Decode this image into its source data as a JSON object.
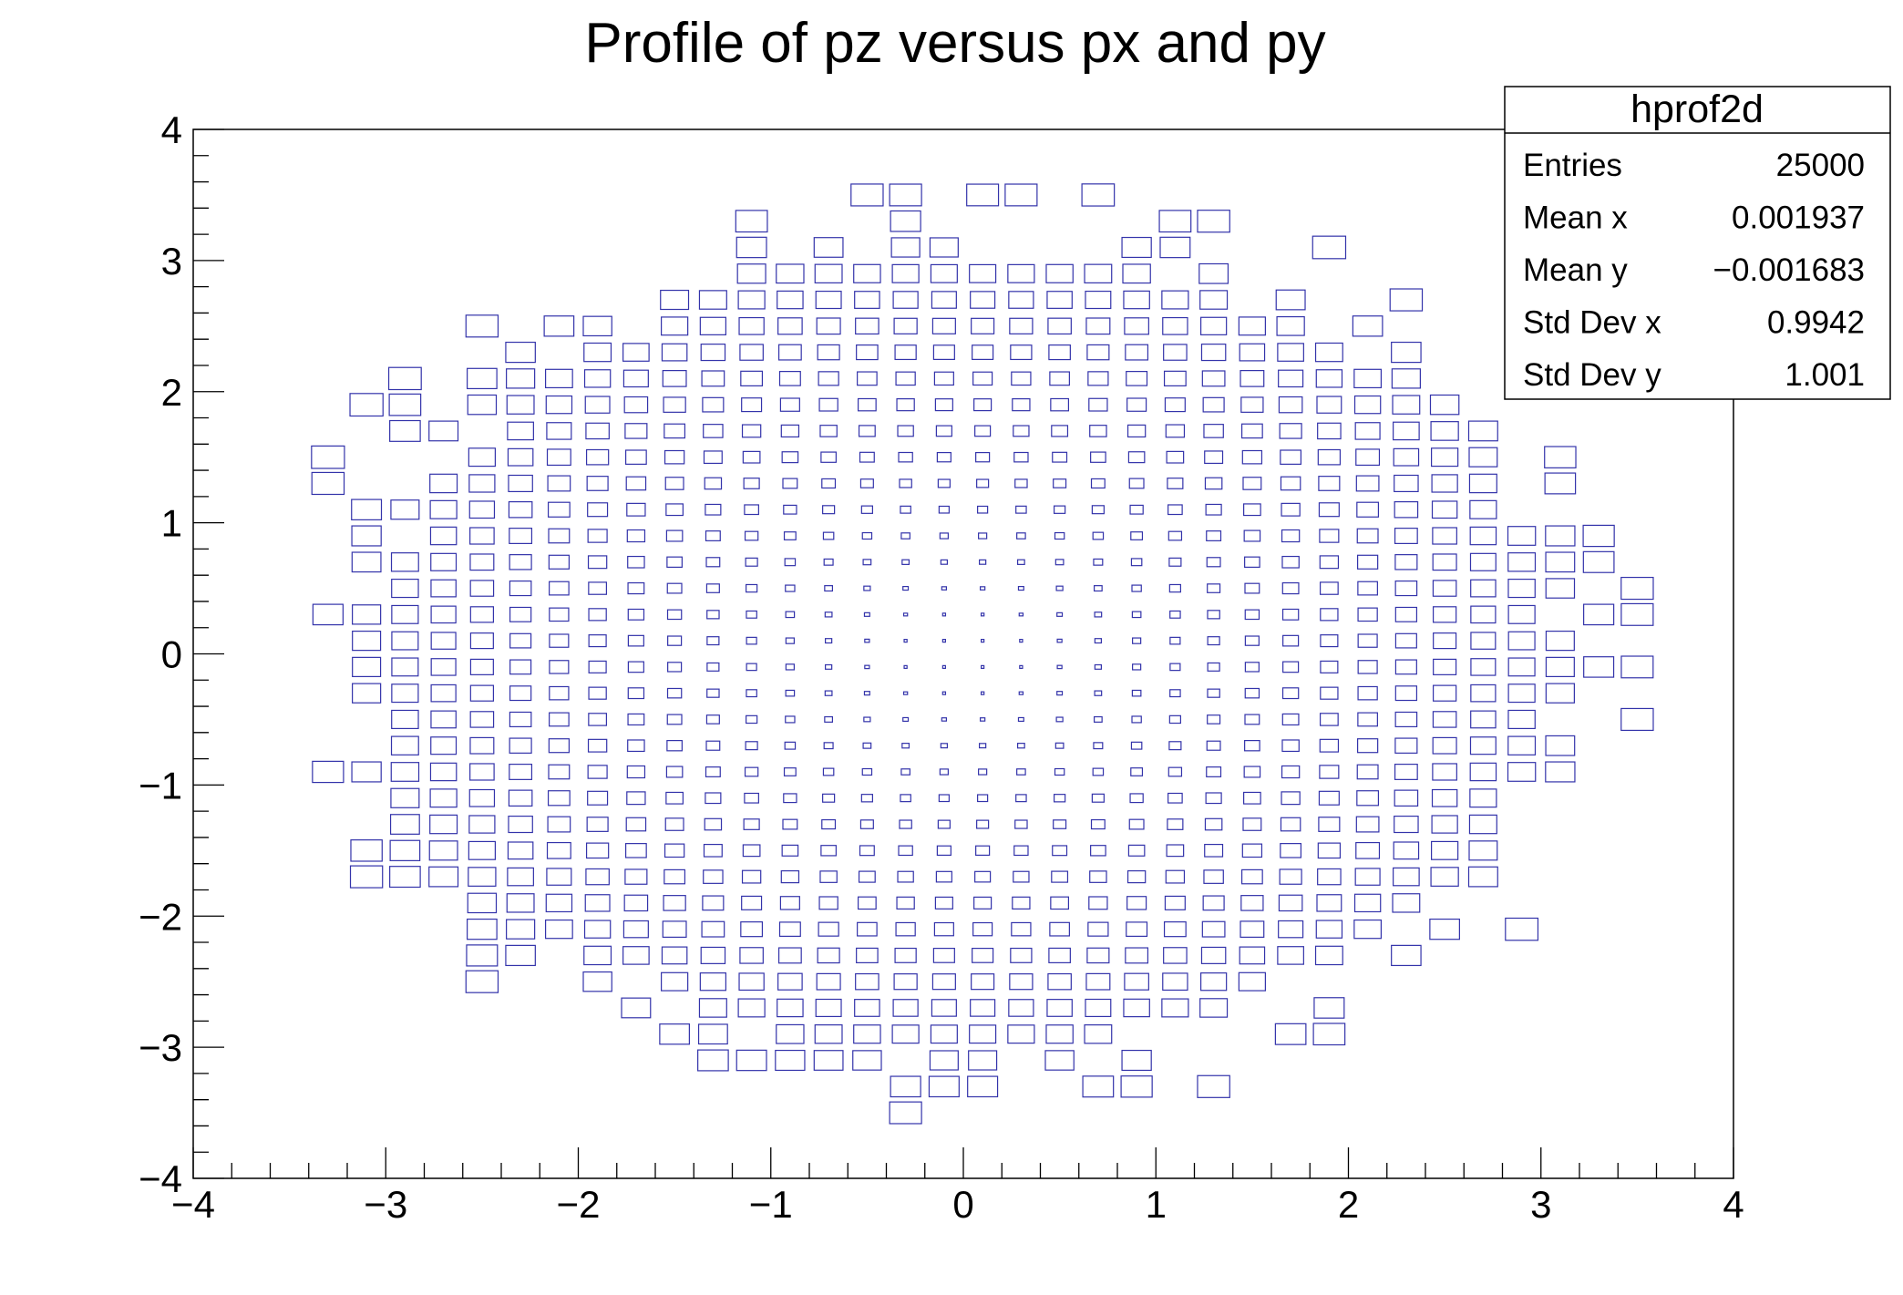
{
  "chart_data": {
    "type": "box",
    "title": "Profile of pz versus px and py",
    "xlabel": "",
    "ylabel": "",
    "xlim": [
      -4,
      4
    ],
    "ylim": [
      -4,
      4
    ],
    "bins_x": 40,
    "bins_y": 40,
    "x_ticks": [
      "−4",
      "−3",
      "−2",
      "−1",
      "0",
      "1",
      "2",
      "3",
      "4"
    ],
    "y_ticks": [
      "−4",
      "−3",
      "−2",
      "−1",
      "0",
      "1",
      "2",
      "3",
      "4"
    ],
    "box_color": "#3333aa",
    "description_of_values": "Profile 2D: box size proportional to mean pz = px^2 + py^2 in each bin",
    "content_max": 18,
    "occupancy_radius_approx": 3.3,
    "stats_box": {
      "name": "hprof2d",
      "rows": [
        {
          "label": "Entries",
          "value": "25000"
        },
        {
          "label": "Mean x",
          "value": "0.001937"
        },
        {
          "label": "Mean y",
          "value": "−0.001683"
        },
        {
          "label": "Std Dev x",
          "value": "0.9942"
        },
        {
          "label": "Std Dev y",
          "value": "1.001"
        }
      ]
    }
  }
}
